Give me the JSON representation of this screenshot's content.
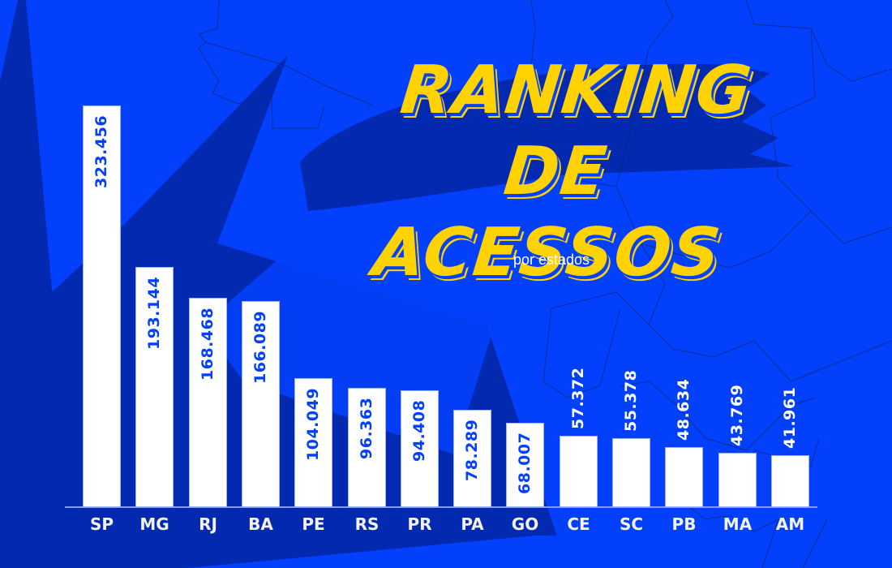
{
  "header": {
    "title_line1": "RANKING",
    "title_line2": "DE ACESSOS",
    "subtitle": "por estados"
  },
  "colors": {
    "background": "#0340fc",
    "background_dark": "#0229b0",
    "title": "#ffd200",
    "bar": "#ffffff",
    "label_inside": "#0340fc",
    "label_outside": "#ffffff"
  },
  "chart_data": {
    "type": "bar",
    "title": "RANKING DE ACESSOS",
    "subtitle": "por estados",
    "xlabel": "",
    "ylabel": "",
    "categories": [
      "SP",
      "MG",
      "RJ",
      "BA",
      "PE",
      "RS",
      "PR",
      "PA",
      "GO",
      "CE",
      "SC",
      "PB",
      "MA",
      "AM"
    ],
    "values": [
      323456,
      193144,
      168468,
      166089,
      104049,
      96363,
      94408,
      78289,
      68007,
      57372,
      55378,
      48634,
      43769,
      41961
    ],
    "value_labels": [
      "323.456",
      "193.144",
      "168.468",
      "166.089",
      "104.049",
      "96.363",
      "94.408",
      "78.289",
      "68.007",
      "57.372",
      "55.378",
      "48.634",
      "43.769",
      "41.961"
    ],
    "ylim": [
      0,
      323456
    ],
    "grid": false,
    "legend": null,
    "orientation": "vertical",
    "label_rotation": -90
  }
}
